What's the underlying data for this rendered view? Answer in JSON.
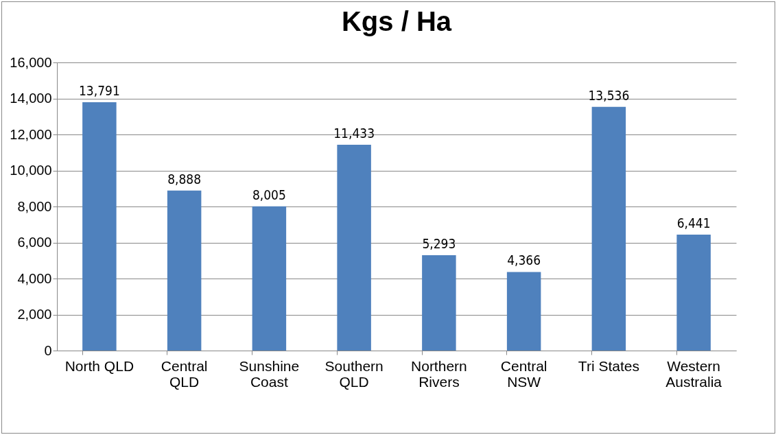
{
  "chart_data": {
    "type": "bar",
    "title": "Kgs / Ha",
    "categories": [
      "North QLD",
      "Central QLD",
      "Sunshine Coast",
      "Southern QLD",
      "Northern Rivers",
      "Central NSW",
      "Tri States",
      "Western Australia"
    ],
    "values": [
      13791,
      8888,
      8005,
      11433,
      5293,
      4366,
      13536,
      6441
    ],
    "value_labels": [
      "13,791",
      "8,888",
      "8,005",
      "11,433",
      "5,293",
      "4,366",
      "13,536",
      "6,441"
    ],
    "color": "#4f81bd",
    "ylim": [
      0,
      16000
    ],
    "yticks": [
      {
        "value": 0,
        "label": "0"
      },
      {
        "value": 2000,
        "label": "2,000"
      },
      {
        "value": 4000,
        "label": "4,000"
      },
      {
        "value": 6000,
        "label": "6,000"
      },
      {
        "value": 8000,
        "label": "8,000"
      },
      {
        "value": 10000,
        "label": "10,000"
      },
      {
        "value": 12000,
        "label": "12,000"
      },
      {
        "value": 14000,
        "label": "14,000"
      },
      {
        "value": 16000,
        "label": "16,000"
      }
    ],
    "grid": "y"
  }
}
